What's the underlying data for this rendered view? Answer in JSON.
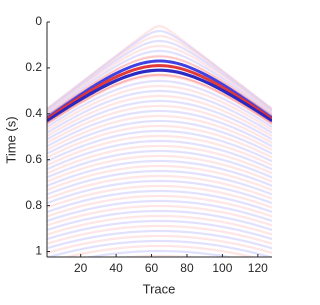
{
  "chart_data": {
    "type": "image",
    "x_label": "Trace",
    "y_label": "Time (s)",
    "xlim": [
      1,
      128
    ],
    "ylim": [
      0,
      1.024
    ],
    "y_reversed": true,
    "xticks": [
      20,
      40,
      60,
      80,
      100,
      120
    ],
    "yticks": [
      0,
      0.2,
      0.4,
      0.6,
      0.8,
      1
    ]
  }
}
